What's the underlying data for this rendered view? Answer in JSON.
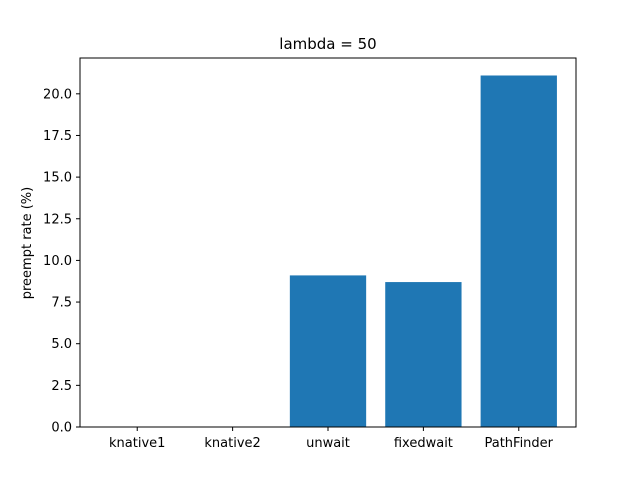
{
  "chart_data": {
    "type": "bar",
    "title": "lambda = 50",
    "xlabel": "",
    "ylabel": "preempt rate (%)",
    "categories": [
      "knative1",
      "knative2",
      "unwait",
      "fixedwait",
      "PathFinder"
    ],
    "values": [
      0.0,
      0.0,
      9.1,
      8.7,
      21.1
    ],
    "ylim": [
      0,
      22.15
    ],
    "yticks": [
      0.0,
      2.5,
      5.0,
      7.5,
      10.0,
      12.5,
      15.0,
      17.5,
      20.0
    ],
    "ytick_labels": [
      "0.0",
      "2.5",
      "5.0",
      "7.5",
      "10.0",
      "12.5",
      "15.0",
      "17.5",
      "20.0"
    ],
    "bar_color": "#1f77b4",
    "grid": false,
    "legend": "none"
  }
}
